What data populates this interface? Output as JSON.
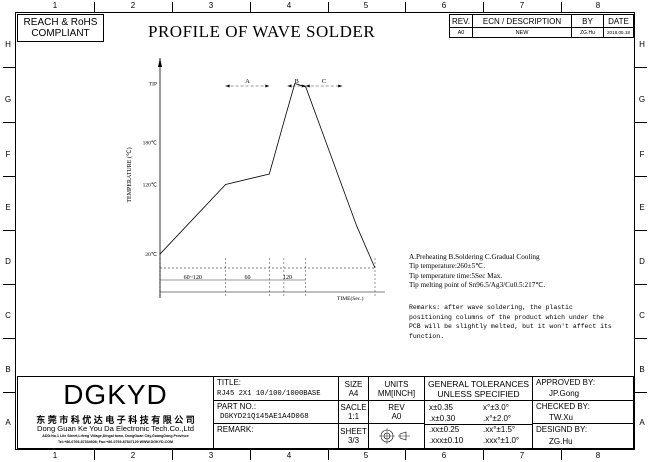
{
  "compliance": {
    "line1": "REACH & RoHS",
    "line2": "COMPLIANT"
  },
  "title": "PROFILE OF WAVE SOLDER",
  "zones": {
    "columns": [
      "1",
      "2",
      "3",
      "4",
      "5",
      "6",
      "7",
      "8"
    ],
    "rows": [
      "H",
      "G",
      "F",
      "E",
      "D",
      "C",
      "B",
      "A"
    ]
  },
  "revision_table": {
    "headers": [
      "REV.",
      "ECN / DESCRIPTION",
      "BY",
      "DATE"
    ],
    "rows": [
      [
        "A0",
        "NEW",
        "ZG.Hu",
        "2018.05.18"
      ]
    ]
  },
  "chart_data": {
    "type": "line",
    "ylabel": "TEMPERATURE (℃)",
    "xlabel": "TIME(Sec.)",
    "y_ticks": [
      "TIP",
      "180℃",
      "120℃",
      "20℃"
    ],
    "zones": [
      "A",
      "B",
      "C"
    ],
    "time_segments": [
      "60~120",
      "60",
      "120"
    ],
    "profile": [
      {
        "t": 0,
        "temp": 20
      },
      {
        "t": 90,
        "temp": 120
      },
      {
        "t": 150,
        "temp": 135
      },
      {
        "t": 170,
        "temp": 210
      },
      {
        "t": 185,
        "temp": 265
      },
      {
        "t": 200,
        "temp": 260
      },
      {
        "t": 270,
        "temp": 60
      },
      {
        "t": 295,
        "temp": 0
      }
    ]
  },
  "notes": {
    "line1": "A.Preheating  B.Soldering  C.Gradual Cooling",
    "line2": "Tip temperature:260±5℃.",
    "line3": "Tip temperature time:5Sec Max.",
    "line4": "Tip melting point of Sn96.5/Ag3/Cu0.5:217℃."
  },
  "remarks": {
    "line1": "Remarks: after wave soldering, the plastic",
    "line2": "positioning columns of the product  which under the",
    "line3": "PCB will be slightly melted, but it won't affect its",
    "line4": "function."
  },
  "company": {
    "logo": "DGKYD",
    "name_cn": "东 莞 市 科 优 达 电 子 科 技 有 限 公 司",
    "name_en": "Dong Guan Ke You Da Electronic Tech.Co.,Ltd",
    "address": "ADD:No.1 Lile Street,Lifeng Village,Dingal town, DongGuan City,GuangDong Province",
    "contact": "Tel:+86-0769-87334608; Fax:+86-0769-87847129 WWW.DGKYD.COM"
  },
  "title_block": {
    "title_label": "TITLE:",
    "title_value": "RJ45 2X1 10/100/1000BASE",
    "part_label": "PART NO.:",
    "part_value": "DGKYD21Q145AE1A4D068",
    "remark_label": "REMARK:",
    "size_label": "SIZE",
    "size_value": "A4",
    "units_label": "UNITS",
    "units_value": "MM[INCH]",
    "scale_label": "SACLE",
    "scale_value": "1:1",
    "rev_label": "REV",
    "rev_value": "A0",
    "sheet_label": "SHEET",
    "sheet_value": "3/3",
    "tol_title": "GENERAL TOLERANCES",
    "tol_sub": "UNLESS SPECIFIED",
    "tol": [
      "x±0.35",
      "x°±3.0°",
      ".x±0.30",
      ".x°±2.0°",
      ".xx±0.25",
      ".xx°±1.5°",
      ".xxx±0.10",
      ".xxx°±1.0°"
    ],
    "approved_label": "APPROVED BY:",
    "approved_value": "JP.Gong",
    "checked_label": "CHECKED BY:",
    "checked_value": "TW.Xu",
    "designed_label": "DESIGND BY:",
    "designed_value": "ZG.Hu"
  }
}
